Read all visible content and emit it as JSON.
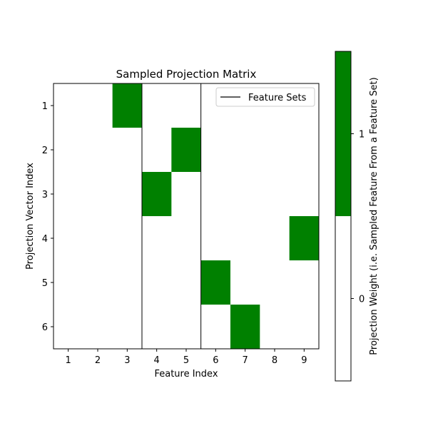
{
  "chart_data": {
    "type": "heatmap",
    "title": "Sampled Projection Matrix",
    "xlabel": "Feature Index",
    "ylabel": "Projection Vector Index",
    "x_ticks": [
      "1",
      "2",
      "3",
      "4",
      "5",
      "6",
      "7",
      "8",
      "9"
    ],
    "y_ticks": [
      "1",
      "2",
      "3",
      "4",
      "5",
      "6"
    ],
    "matrix": [
      [
        0,
        0,
        1,
        0,
        0,
        0,
        0,
        0,
        0
      ],
      [
        0,
        0,
        0,
        0,
        1,
        0,
        0,
        0,
        0
      ],
      [
        0,
        0,
        0,
        1,
        0,
        0,
        0,
        0,
        0
      ],
      [
        0,
        0,
        0,
        0,
        0,
        0,
        0,
        0,
        1
      ],
      [
        0,
        0,
        0,
        0,
        0,
        1,
        0,
        0,
        0
      ],
      [
        0,
        0,
        0,
        0,
        0,
        0,
        1,
        0,
        0
      ]
    ],
    "feature_set_boundaries": [
      3.5,
      5.5
    ],
    "legend": {
      "label": "Feature Sets",
      "position": "upper right"
    },
    "colorbar": {
      "label": "Projection Weight (i.e. Sampled Feature From a Feature Set)",
      "ticks": [
        "0",
        "1"
      ],
      "colors": {
        "0": "#ffffff",
        "1": "#008000"
      }
    }
  }
}
